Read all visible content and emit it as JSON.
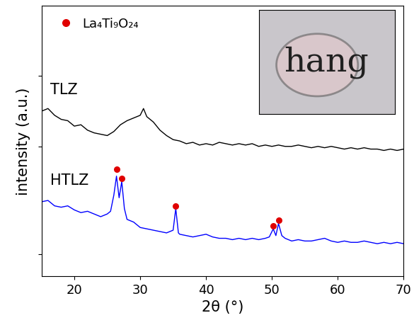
{
  "chart_data": {
    "type": "line",
    "x_label": "2θ (°)",
    "y_label": "intensity (a.u.)",
    "xlim": [
      15,
      70
    ],
    "xticks": [
      20,
      30,
      40,
      50,
      60,
      70
    ],
    "ylim": [
      0,
      10
    ],
    "yticks": [
      0.8,
      4.8,
      7.4
    ],
    "tick_labels": "x",
    "grid": false,
    "legend": "upper left",
    "inset_image_text": "hang",
    "series": [
      {
        "name": "TLZ",
        "type": "line",
        "color": "#000000",
        "x": [
          15,
          16,
          17,
          18,
          19,
          20,
          21,
          22,
          23,
          24,
          25,
          26,
          27,
          28,
          29,
          30,
          30.5,
          31,
          32,
          33,
          34,
          35,
          36,
          37,
          38,
          39,
          40,
          41,
          42,
          43,
          44,
          45,
          46,
          47,
          48,
          49,
          50,
          51,
          52,
          53,
          54,
          55,
          56,
          57,
          58,
          59,
          60,
          61,
          62,
          63,
          64,
          65,
          66,
          67,
          68,
          69,
          70
        ],
        "values": [
          6.1,
          6.2,
          5.95,
          5.8,
          5.75,
          5.55,
          5.6,
          5.4,
          5.3,
          5.25,
          5.2,
          5.35,
          5.6,
          5.75,
          5.85,
          5.95,
          6.2,
          5.9,
          5.7,
          5.4,
          5.2,
          5.05,
          5.0,
          4.9,
          4.95,
          4.85,
          4.9,
          4.85,
          4.95,
          4.9,
          4.85,
          4.9,
          4.85,
          4.9,
          4.8,
          4.85,
          4.8,
          4.85,
          4.8,
          4.8,
          4.85,
          4.8,
          4.75,
          4.8,
          4.75,
          4.8,
          4.75,
          4.7,
          4.75,
          4.7,
          4.75,
          4.7,
          4.7,
          4.65,
          4.7,
          4.65,
          4.7
        ]
      },
      {
        "name": "HTLZ",
        "type": "line",
        "color": "#0000ff",
        "x": [
          15,
          16,
          17,
          18,
          19,
          20,
          21,
          22,
          23,
          24,
          25,
          25.5,
          26,
          26.4,
          26.8,
          27.2,
          27.6,
          28,
          29,
          30,
          31,
          32,
          33,
          34,
          35,
          35.4,
          35.8,
          36,
          37,
          38,
          39,
          40,
          41,
          42,
          43,
          44,
          45,
          46,
          47,
          48,
          49,
          49.6,
          50.2,
          50.6,
          51.0,
          51.5,
          52,
          53,
          54,
          55,
          56,
          57,
          58,
          59,
          60,
          61,
          62,
          63,
          64,
          65,
          66,
          67,
          68,
          69,
          70
        ],
        "values": [
          2.75,
          2.8,
          2.6,
          2.55,
          2.6,
          2.45,
          2.35,
          2.4,
          2.3,
          2.2,
          2.3,
          2.4,
          3.0,
          3.7,
          2.9,
          3.5,
          2.5,
          2.1,
          2.0,
          1.8,
          1.75,
          1.7,
          1.65,
          1.6,
          1.7,
          2.5,
          1.6,
          1.55,
          1.5,
          1.45,
          1.5,
          1.55,
          1.45,
          1.4,
          1.4,
          1.35,
          1.4,
          1.35,
          1.4,
          1.35,
          1.4,
          1.45,
          1.75,
          1.5,
          1.95,
          1.5,
          1.4,
          1.3,
          1.35,
          1.3,
          1.3,
          1.35,
          1.4,
          1.3,
          1.25,
          1.3,
          1.25,
          1.25,
          1.3,
          1.25,
          1.2,
          1.25,
          1.2,
          1.25,
          1.2
        ]
      },
      {
        "name": "La₄Ti₉O₂₄",
        "type": "scatter",
        "color": "#e00000",
        "marker": "o",
        "x": [
          26.4,
          27.2,
          35.4,
          50.2,
          51.0
        ],
        "values": [
          3.95,
          3.62,
          2.6,
          1.86,
          2.07
        ]
      }
    ]
  }
}
